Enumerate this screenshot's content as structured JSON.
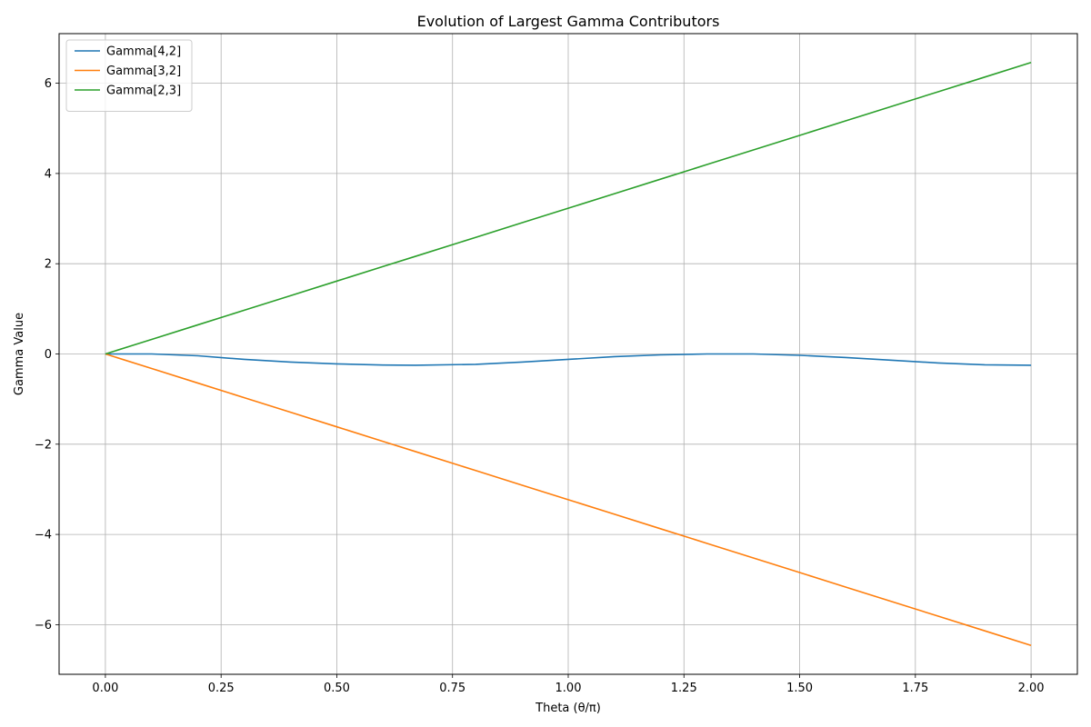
{
  "chart_data": {
    "type": "line",
    "title": "Evolution of Largest Gamma Contributors",
    "xlabel": "Theta (θ/π)",
    "ylabel": "Gamma Value",
    "xlim": [
      -0.1,
      2.1
    ],
    "ylim": [
      -7.1,
      7.1
    ],
    "xticks": [
      0.0,
      0.25,
      0.5,
      0.75,
      1.0,
      1.25,
      1.5,
      1.75,
      2.0
    ],
    "xtick_labels": [
      "0.00",
      "0.25",
      "0.50",
      "0.75",
      "1.00",
      "1.25",
      "1.50",
      "1.75",
      "2.00"
    ],
    "yticks": [
      -6,
      -4,
      -2,
      0,
      2,
      4,
      6
    ],
    "ytick_labels": [
      "−6",
      "−4",
      "−2",
      "0",
      "2",
      "4",
      "6"
    ],
    "grid": true,
    "legend_position": "top-left",
    "x": [
      0.0,
      0.1,
      0.2,
      0.3,
      0.4,
      0.5,
      0.6,
      0.67,
      0.8,
      0.9,
      1.0,
      1.1,
      1.2,
      1.3,
      1.4,
      1.5,
      1.6,
      1.7,
      1.8,
      1.9,
      2.0
    ],
    "series": [
      {
        "name": "Gamma[4,2]",
        "color": "#1f77b4",
        "values": [
          0.0,
          0.0,
          -0.04,
          -0.12,
          -0.18,
          -0.22,
          -0.245,
          -0.25,
          -0.23,
          -0.18,
          -0.12,
          -0.06,
          -0.02,
          0.0,
          0.0,
          -0.03,
          -0.08,
          -0.14,
          -0.2,
          -0.24,
          -0.25
        ]
      },
      {
        "name": "Gamma[3,2]",
        "color": "#ff7f0e",
        "values": [
          0.0,
          -0.323,
          -0.646,
          -0.969,
          -1.292,
          -1.615,
          -1.938,
          -2.164,
          -2.584,
          -2.907,
          -3.23,
          -3.553,
          -3.876,
          -4.199,
          -4.522,
          -4.845,
          -5.168,
          -5.491,
          -5.814,
          -6.137,
          -6.46
        ]
      },
      {
        "name": "Gamma[2,3]",
        "color": "#2ca02c",
        "values": [
          0.0,
          0.323,
          0.646,
          0.969,
          1.292,
          1.615,
          1.938,
          2.164,
          2.584,
          2.907,
          3.23,
          3.553,
          3.876,
          4.199,
          4.522,
          4.845,
          5.168,
          5.491,
          5.814,
          6.137,
          6.46
        ]
      }
    ]
  }
}
